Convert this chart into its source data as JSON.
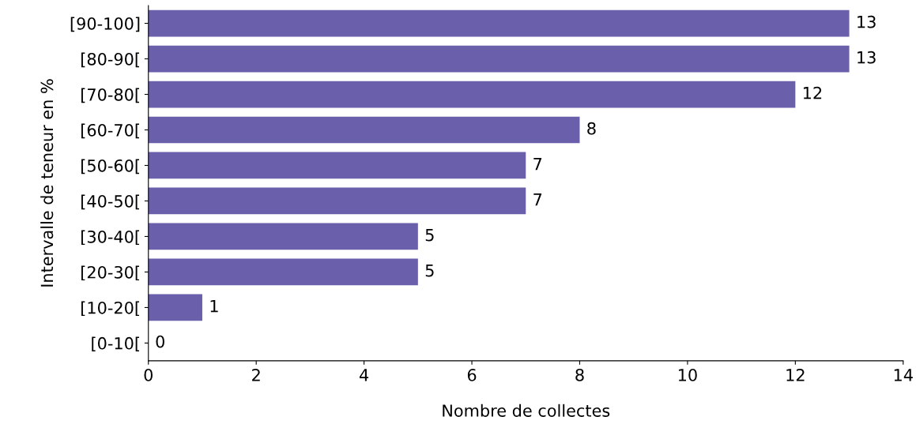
{
  "chart_data": {
    "type": "bar",
    "orientation": "horizontal",
    "xlabel": "Nombre de collectes",
    "ylabel": "Intervalle de teneur en %",
    "categories": [
      "[90-100]",
      "[80-90[",
      "[70-80[",
      "[60-70[",
      "[50-60[",
      "[40-50[",
      "[30-40[",
      "[20-30[",
      "[10-20[",
      "[0-10["
    ],
    "values": [
      13,
      13,
      12,
      8,
      7,
      7,
      5,
      5,
      1,
      0
    ],
    "color": "#6a5fab",
    "xlim": [
      0,
      14
    ],
    "xticks": [
      0,
      2,
      4,
      6,
      8,
      10,
      12,
      14
    ],
    "grid": false,
    "data_labels": true
  }
}
